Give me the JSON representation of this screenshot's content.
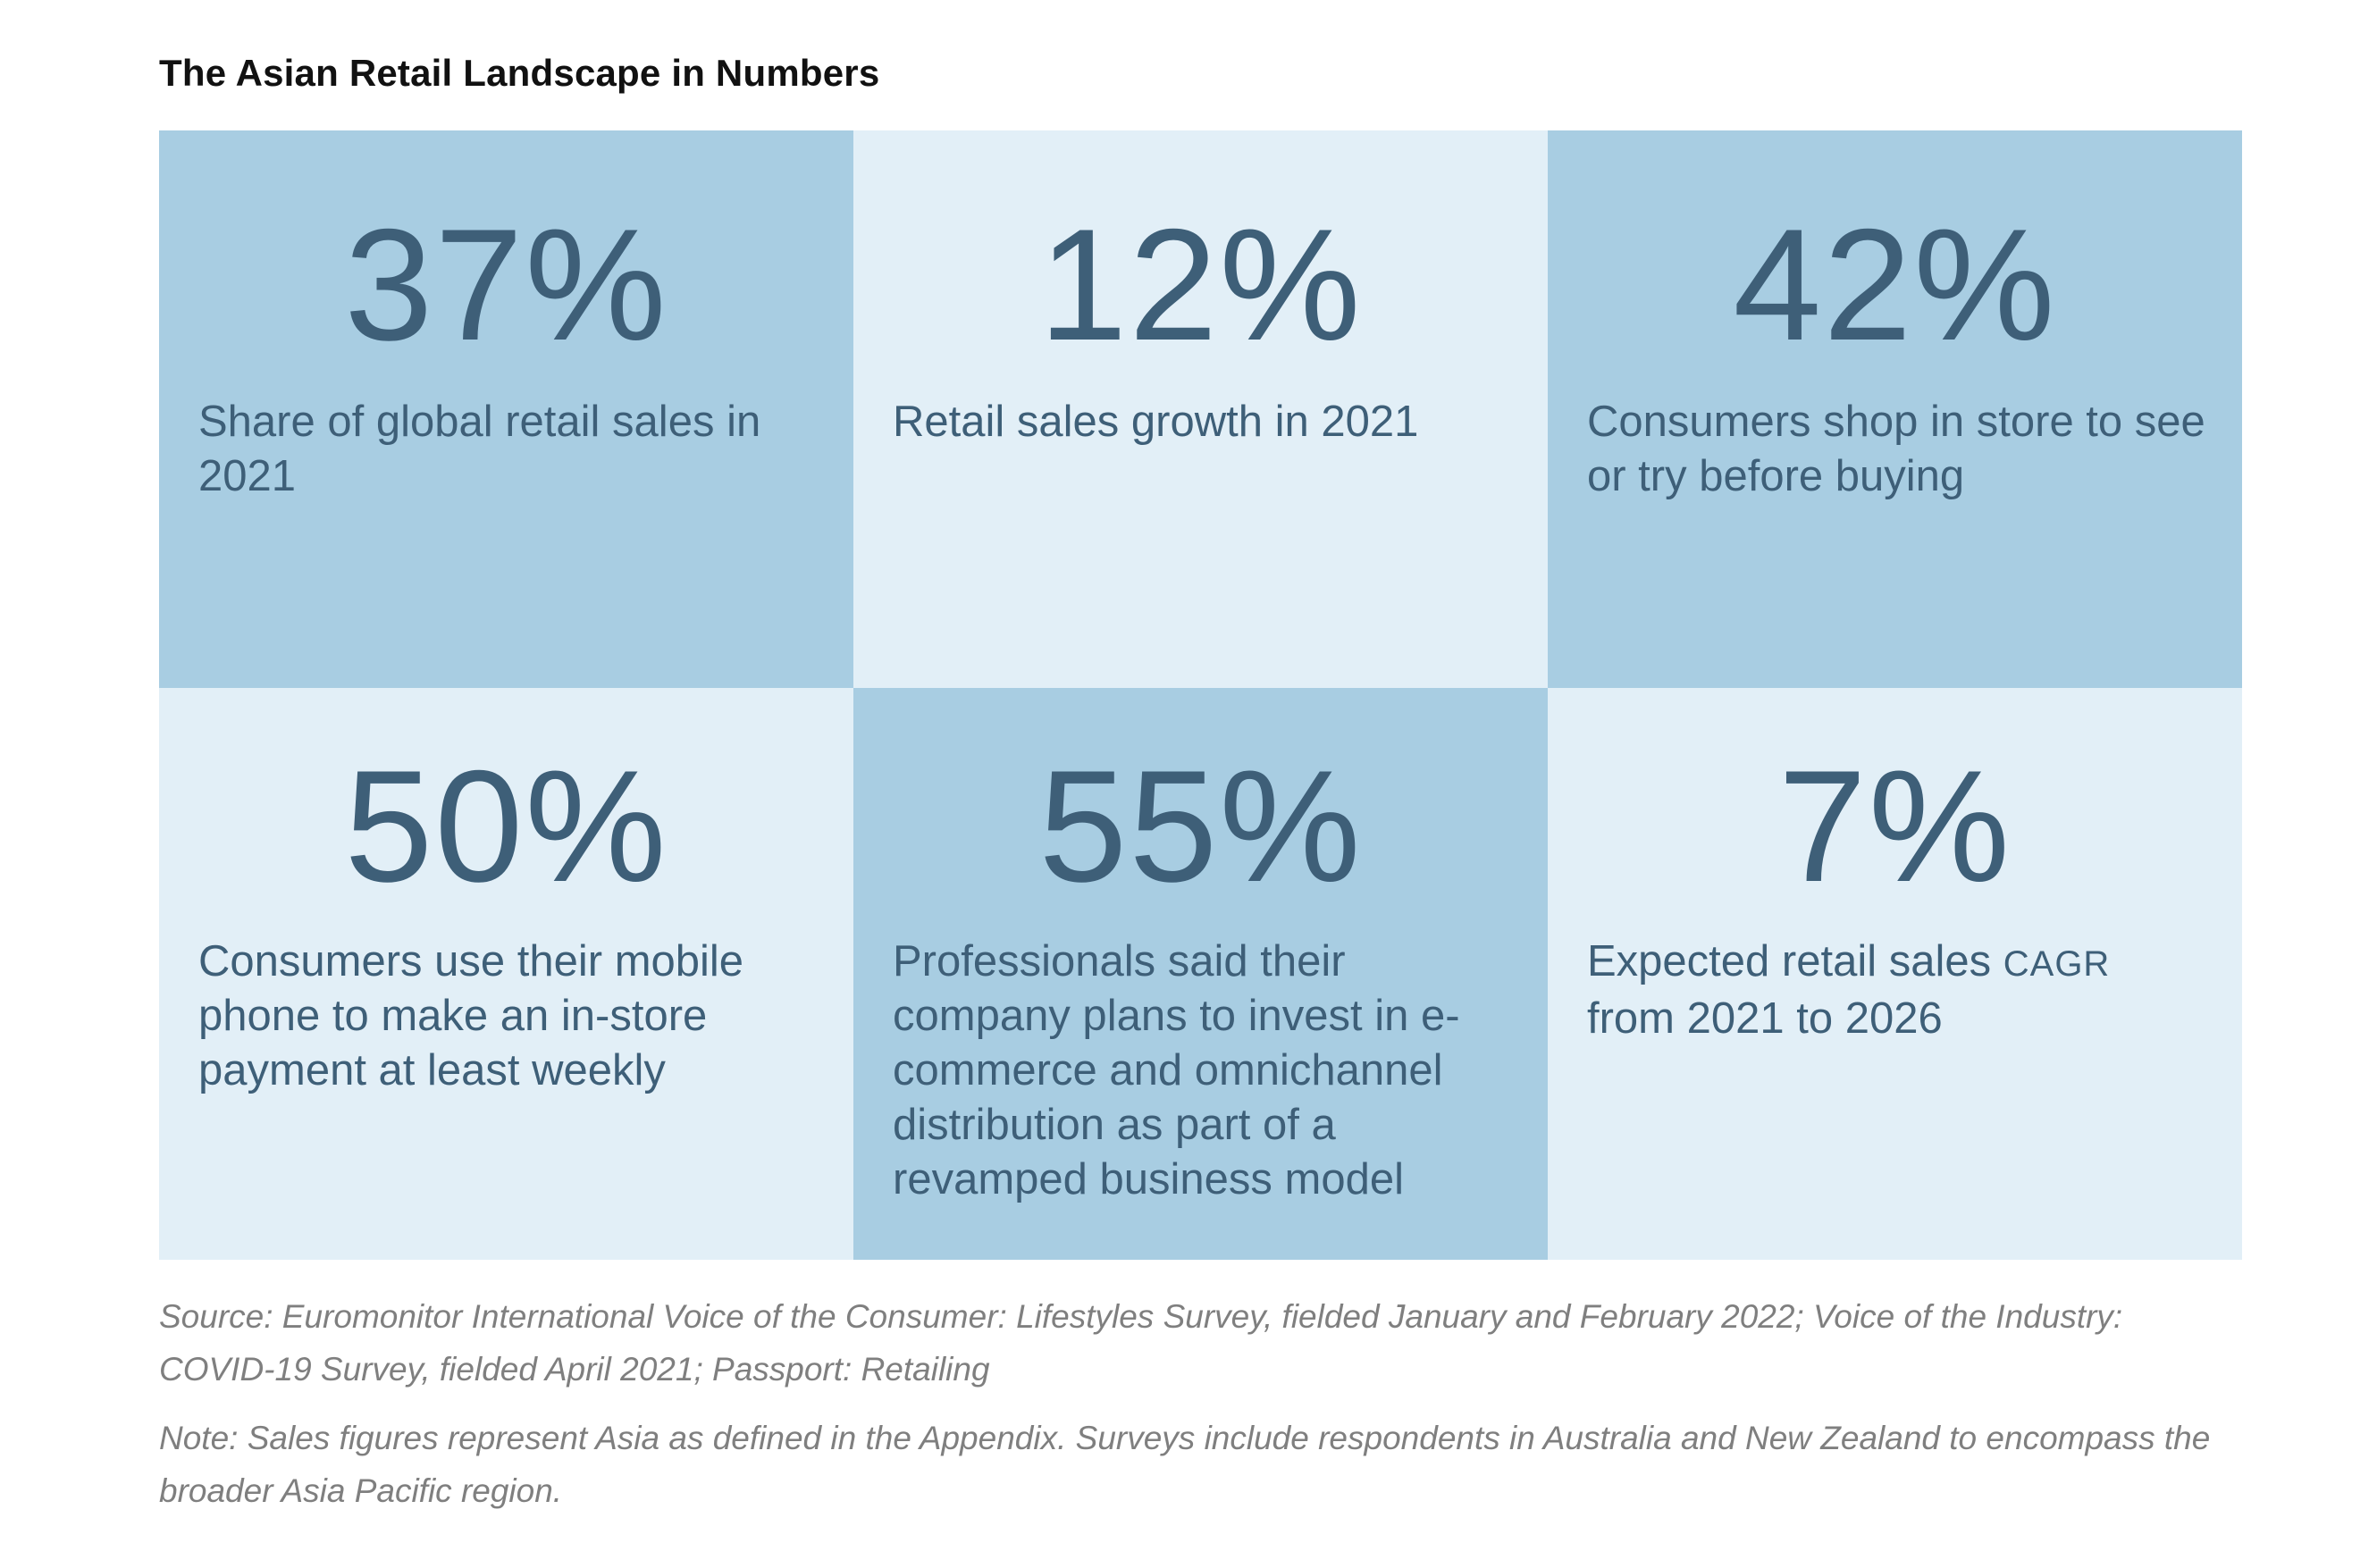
{
  "title": "The Asian Retail Landscape in Numbers",
  "tiles": [
    {
      "value": "37%",
      "label": "Share of global retail sales in 2021"
    },
    {
      "value": "12%",
      "label": "Retail sales growth in 2021"
    },
    {
      "value": "42%",
      "label": "Consumers shop in store to see or try before buying"
    },
    {
      "value": "50%",
      "label": "Consumers use their mobile phone to make an in-store payment at least weekly"
    },
    {
      "value": "55%",
      "label": "Professionals said their company plans to invest in e-commerce and omnichannel distribution as part of a revamped business model"
    },
    {
      "value": "7%",
      "label_prefix": "Expected retail sales ",
      "label_abbr": "CAGR",
      "label_suffix": " from 2021 to 2026"
    }
  ],
  "source": "Source: Euromonitor International Voice of the Consumer: Lifestyles Survey, fielded January and February 2022; Voice of the Industry: COVID-19 Survey, fielded April 2021; Passport: Retailing",
  "note": "Note: Sales figures represent Asia as defined in the Appendix. Surveys include respondents in Australia and New Zealand to encompass the broader Asia Pacific region.",
  "colors": {
    "tile_dark": "#a8cde2",
    "tile_light": "#e2eff7",
    "text": "#3e5f78",
    "footnote": "#7f7f7f"
  }
}
